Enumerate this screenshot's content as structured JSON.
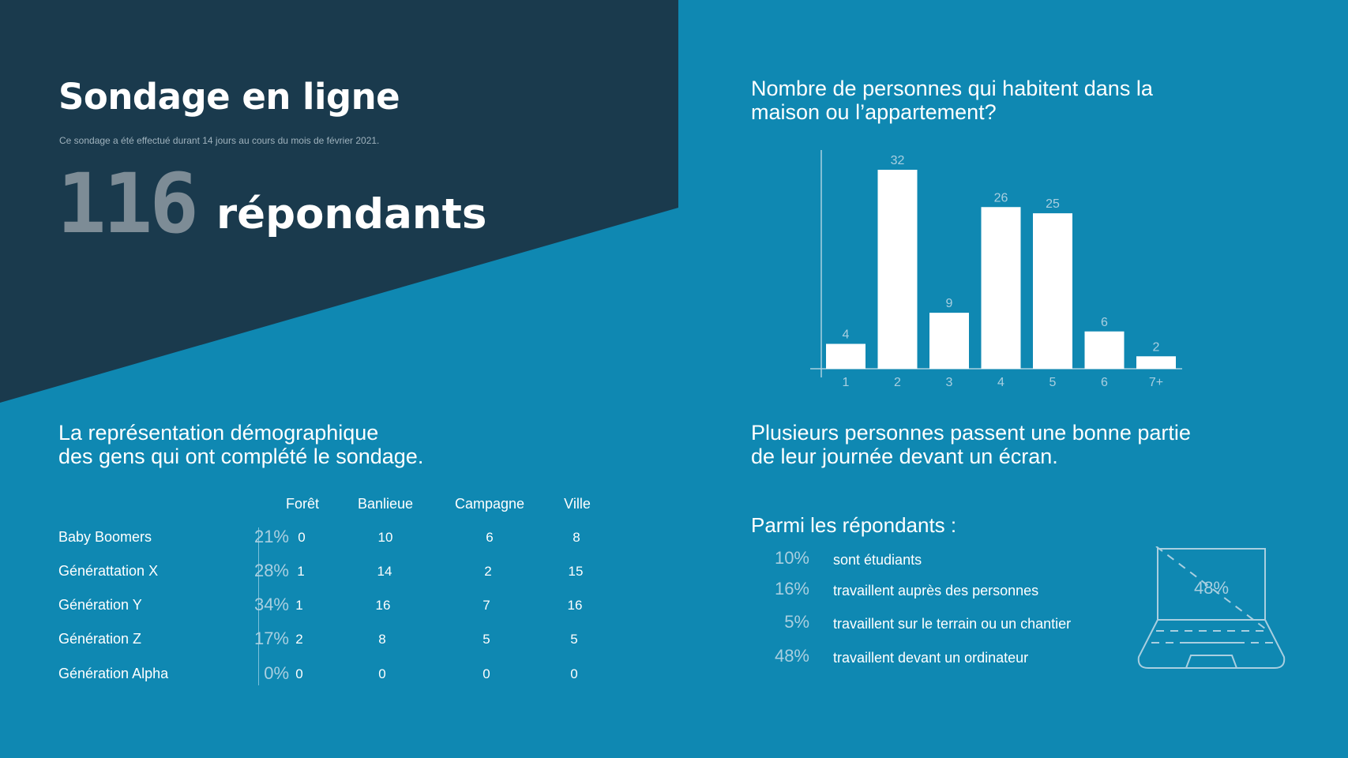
{
  "header": {
    "title": "Sondage en ligne",
    "subtitle": "Ce sondage a été effectué durant 14 jours au cours du mois de février 2021.",
    "respondents_count": "116",
    "respondents_label": "répondants"
  },
  "demographics": {
    "heading_line1": "La représentation démographique",
    "heading_line2": "des gens qui ont complété le sondage.",
    "columns": [
      "Forêt",
      "Banlieue",
      "Campagne",
      "Ville"
    ],
    "rows": [
      {
        "label": "Baby Boomers",
        "percent": "21%",
        "values": [
          "0",
          "10",
          "6",
          "8"
        ]
      },
      {
        "label": "Générattation X",
        "percent": "28%",
        "values": [
          "1",
          "14",
          "2",
          "15"
        ]
      },
      {
        "label": "Génération Y",
        "percent": "34%",
        "values": [
          "1",
          "16",
          "7",
          "16"
        ]
      },
      {
        "label": "Génération Z",
        "percent": "17%",
        "values": [
          "2",
          "8",
          "5",
          "5"
        ]
      },
      {
        "label": "Génération Alpha",
        "percent": "0%",
        "values": [
          "0",
          "0",
          "0",
          "0"
        ]
      }
    ]
  },
  "chart_heading": {
    "line1": "Nombre de personnes qui habitent dans la",
    "line2": "maison ou l’appartement?"
  },
  "chart_data": {
    "type": "bar",
    "title": "Nombre de personnes qui habitent dans la maison ou l’appartement?",
    "categories": [
      "1",
      "2",
      "3",
      "4",
      "5",
      "6",
      "7+"
    ],
    "values": [
      4,
      32,
      9,
      26,
      25,
      6,
      2
    ],
    "data_labels": [
      "4",
      "32",
      "9",
      "26",
      "25",
      "6",
      "2"
    ],
    "ylim": [
      0,
      32
    ],
    "grid": false,
    "bar_color": "#ffffff",
    "label_color": "#a9cfe0"
  },
  "screen": {
    "heading_line1": "Plusieurs personnes passent une bonne partie",
    "heading_line2": "de leur journée devant un écran.",
    "parmi": "Parmi les répondants :",
    "stats": [
      {
        "percent": "10%",
        "text": "sont étudiants"
      },
      {
        "percent": "16%",
        "text": "travaillent auprès des personnes"
      },
      {
        "percent": "5%",
        "text": "travaillent sur le terrain ou un chantier"
      },
      {
        "percent": "48%",
        "text": "travaillent devant un ordinateur"
      }
    ],
    "laptop_percent": "48%",
    "laptop_icon": "laptop-icon"
  },
  "colors": {
    "background": "#0f88b2",
    "dark_panel": "#1a3a4d",
    "muted_text": "#a9cfe0"
  }
}
